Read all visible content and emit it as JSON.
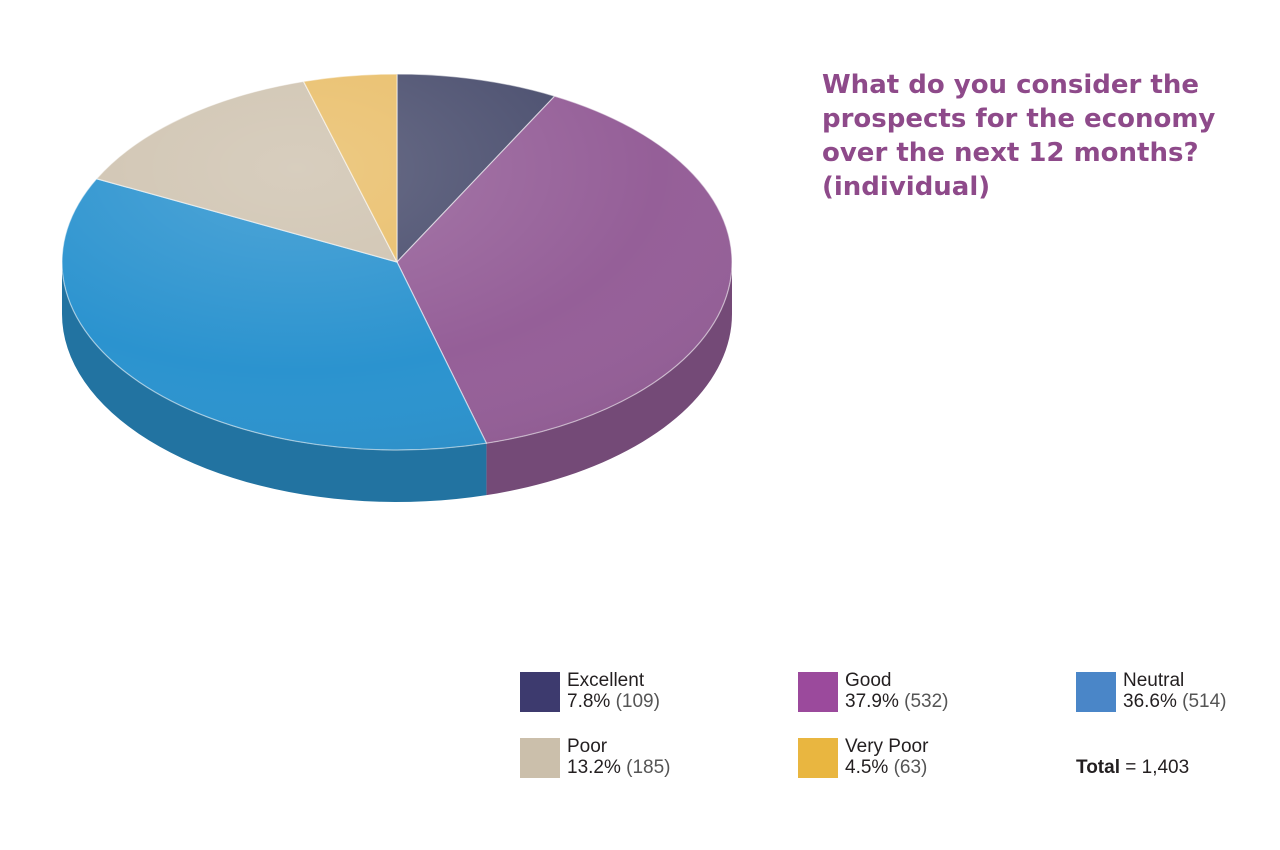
{
  "chart_data": {
    "type": "pie",
    "title": "What do you consider the prospects for the economy over the next 12 months? (individual)",
    "slices": [
      {
        "label": "Excellent",
        "percent_label": "7.8%",
        "count_label": "(109)",
        "percent": 7.8,
        "count": 109,
        "color": "#4a4e6e"
      },
      {
        "label": "Good",
        "percent_label": "37.9%",
        "count_label": "(532)",
        "percent": 37.9,
        "count": 532,
        "color": "#955f98"
      },
      {
        "label": "Neutral",
        "percent_label": "36.6%",
        "count_label": "(514)",
        "percent": 36.6,
        "count": 514,
        "color": "#2b93cf"
      },
      {
        "label": "Poor",
        "percent_label": "13.2%",
        "count_label": "(185)",
        "percent": 13.2,
        "count": 185,
        "color": "#cfc3b0"
      },
      {
        "label": "Very Poor",
        "percent_label": "4.5%",
        "count_label": "(63)",
        "percent": 4.5,
        "count": 63,
        "color": "#e9be69"
      }
    ],
    "legend_colors": [
      "#3d3a6e",
      "#9b4a9c",
      "#4a86c8",
      "#cbbfab",
      "#e9b640"
    ],
    "legend_placement": "bottom-right",
    "total_label": "Total",
    "total_value": "= 1,403"
  }
}
